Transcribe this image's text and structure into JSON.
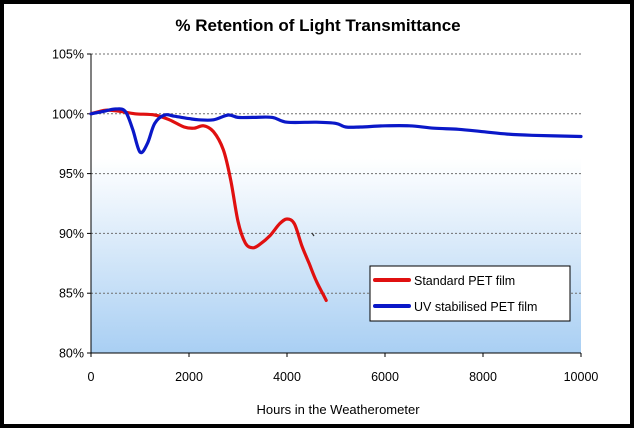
{
  "chart_data": {
    "type": "line",
    "title": "% Retention of Light Transmittance",
    "xlabel": "Hours in the Weatherometer",
    "ylabel": "",
    "xlim": [
      0,
      10000
    ],
    "ylim": [
      80,
      105
    ],
    "x_ticks": [
      0,
      2000,
      4000,
      6000,
      8000,
      10000
    ],
    "x_tick_labels": [
      "0",
      "2000",
      "4000",
      "6000",
      "8000",
      "10000"
    ],
    "y_ticks": [
      80,
      85,
      90,
      95,
      100,
      105
    ],
    "y_tick_labels": [
      "80%",
      "85%",
      "90%",
      "95%",
      "100%",
      "105%"
    ],
    "grid": true,
    "legend_position": "lower-right",
    "series": [
      {
        "name": "Standard PET film",
        "color": "#e01010",
        "points": [
          [
            0,
            100
          ],
          [
            300,
            100.3
          ],
          [
            600,
            100.2
          ],
          [
            900,
            100
          ],
          [
            1300,
            99.9
          ],
          [
            1600,
            99.5
          ],
          [
            1900,
            98.9
          ],
          [
            2100,
            98.8
          ],
          [
            2300,
            99
          ],
          [
            2500,
            98.5
          ],
          [
            2700,
            97
          ],
          [
            2850,
            94.5
          ],
          [
            3000,
            91
          ],
          [
            3150,
            89.2
          ],
          [
            3300,
            88.8
          ],
          [
            3450,
            89.1
          ],
          [
            3650,
            89.8
          ],
          [
            3850,
            90.8
          ],
          [
            4000,
            91.2
          ],
          [
            4150,
            90.8
          ],
          [
            4300,
            89
          ],
          [
            4450,
            87.5
          ],
          [
            4600,
            86
          ],
          [
            4750,
            84.8
          ],
          [
            4800,
            84.4
          ]
        ]
      },
      {
        "name": "UV stabilised PET film",
        "color": "#0a18c8",
        "points": [
          [
            0,
            100
          ],
          [
            250,
            100.2
          ],
          [
            500,
            100.4
          ],
          [
            700,
            100.2
          ],
          [
            850,
            98.7
          ],
          [
            1000,
            96.8
          ],
          [
            1150,
            97.5
          ],
          [
            1300,
            99.2
          ],
          [
            1500,
            99.9
          ],
          [
            1700,
            99.8
          ],
          [
            2000,
            99.6
          ],
          [
            2200,
            99.5
          ],
          [
            2500,
            99.5
          ],
          [
            2800,
            99.9
          ],
          [
            3000,
            99.7
          ],
          [
            3300,
            99.7
          ],
          [
            3700,
            99.7
          ],
          [
            4000,
            99.3
          ],
          [
            4600,
            99.3
          ],
          [
            5000,
            99.2
          ],
          [
            5200,
            98.9
          ],
          [
            5500,
            98.9
          ],
          [
            6000,
            99
          ],
          [
            6500,
            99
          ],
          [
            7000,
            98.8
          ],
          [
            7500,
            98.7
          ],
          [
            8000,
            98.5
          ],
          [
            8500,
            98.3
          ],
          [
            9000,
            98.2
          ],
          [
            10000,
            98.1
          ]
        ]
      }
    ]
  }
}
